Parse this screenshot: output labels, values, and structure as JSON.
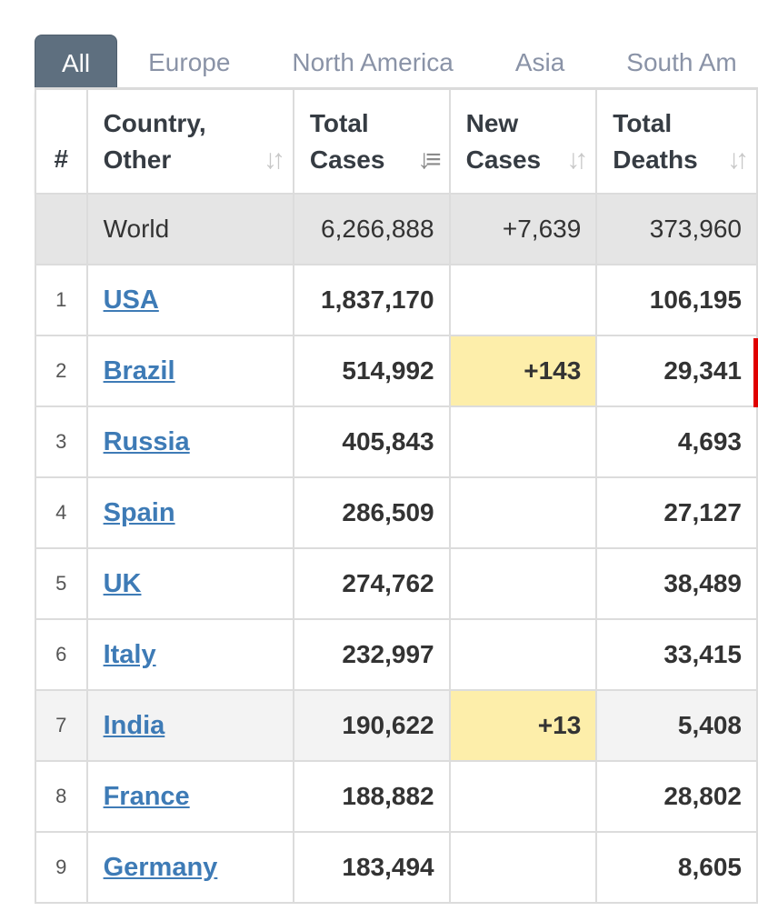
{
  "tabs": [
    {
      "label": "All",
      "active": true
    },
    {
      "label": "Europe",
      "active": false
    },
    {
      "label": "North America",
      "active": false
    },
    {
      "label": "Asia",
      "active": false
    },
    {
      "label": "South Am",
      "active": false
    }
  ],
  "headers": {
    "rank": "#",
    "country_line1": "Country,",
    "country_line2": "Other",
    "total_cases_line1": "Total",
    "total_cases_line2": "Cases",
    "new_cases_line1": "New",
    "new_cases_line2": "Cases",
    "total_deaths_line1": "Total",
    "total_deaths_line2": "Deaths",
    "sort_glyph": "↓↑"
  },
  "world": {
    "name": "World",
    "total_cases": "6,266,888",
    "new_cases": "+7,639",
    "total_deaths": "373,960"
  },
  "rows": [
    {
      "rank": "1",
      "country": "USA",
      "total_cases": "1,837,170",
      "new_cases": "",
      "total_deaths": "106,195"
    },
    {
      "rank": "2",
      "country": "Brazil",
      "total_cases": "514,992",
      "new_cases": "+143",
      "total_deaths": "29,341"
    },
    {
      "rank": "3",
      "country": "Russia",
      "total_cases": "405,843",
      "new_cases": "",
      "total_deaths": "4,693"
    },
    {
      "rank": "4",
      "country": "Spain",
      "total_cases": "286,509",
      "new_cases": "",
      "total_deaths": "27,127"
    },
    {
      "rank": "5",
      "country": "UK",
      "total_cases": "274,762",
      "new_cases": "",
      "total_deaths": "38,489"
    },
    {
      "rank": "6",
      "country": "Italy",
      "total_cases": "232,997",
      "new_cases": "",
      "total_deaths": "33,415"
    },
    {
      "rank": "7",
      "country": "India",
      "total_cases": "190,622",
      "new_cases": "+13",
      "total_deaths": "5,408"
    },
    {
      "rank": "8",
      "country": "France",
      "total_cases": "188,882",
      "new_cases": "",
      "total_deaths": "28,802"
    },
    {
      "rank": "9",
      "country": "Germany",
      "total_cases": "183,494",
      "new_cases": "",
      "total_deaths": "8,605"
    }
  ],
  "colors": {
    "tab_active_bg": "#5e6f7f",
    "link": "#3e7bb6",
    "new_cases_highlight": "#fdeeaa",
    "world_row_bg": "#e5e5e5",
    "marker_red": "#e00000"
  }
}
